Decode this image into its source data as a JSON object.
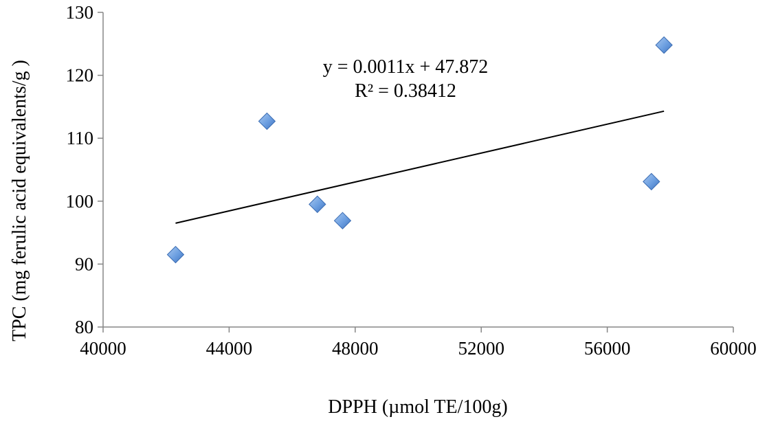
{
  "chart_data": {
    "type": "scatter",
    "title": "",
    "xlabel": "DPPH (µmol TE/100g)",
    "ylabel": "TPC (mg ferulic acid equivalents/g )",
    "xlim": [
      40000,
      60000
    ],
    "ylim": [
      80,
      130
    ],
    "xticks": [
      40000,
      44000,
      48000,
      52000,
      56000,
      60000
    ],
    "yticks": [
      80,
      90,
      100,
      110,
      120,
      130
    ],
    "grid": false,
    "legend": "none",
    "marker": "diamond",
    "marker_color": "#5b8fd6",
    "series": [
      {
        "points": [
          {
            "x": 42300,
            "y": 91.5
          },
          {
            "x": 45200,
            "y": 112.7
          },
          {
            "x": 46800,
            "y": 99.5
          },
          {
            "x": 47600,
            "y": 96.9
          },
          {
            "x": 57400,
            "y": 103.1
          },
          {
            "x": 57800,
            "y": 124.8
          }
        ]
      }
    ],
    "trendline": {
      "type": "linear",
      "color": "#000000",
      "x_range": [
        42300,
        57800
      ],
      "y_range": [
        96.5,
        114.3
      ],
      "equation": "y = 0.0011x + 47.872",
      "r_squared": "R² = 0.38412"
    }
  }
}
